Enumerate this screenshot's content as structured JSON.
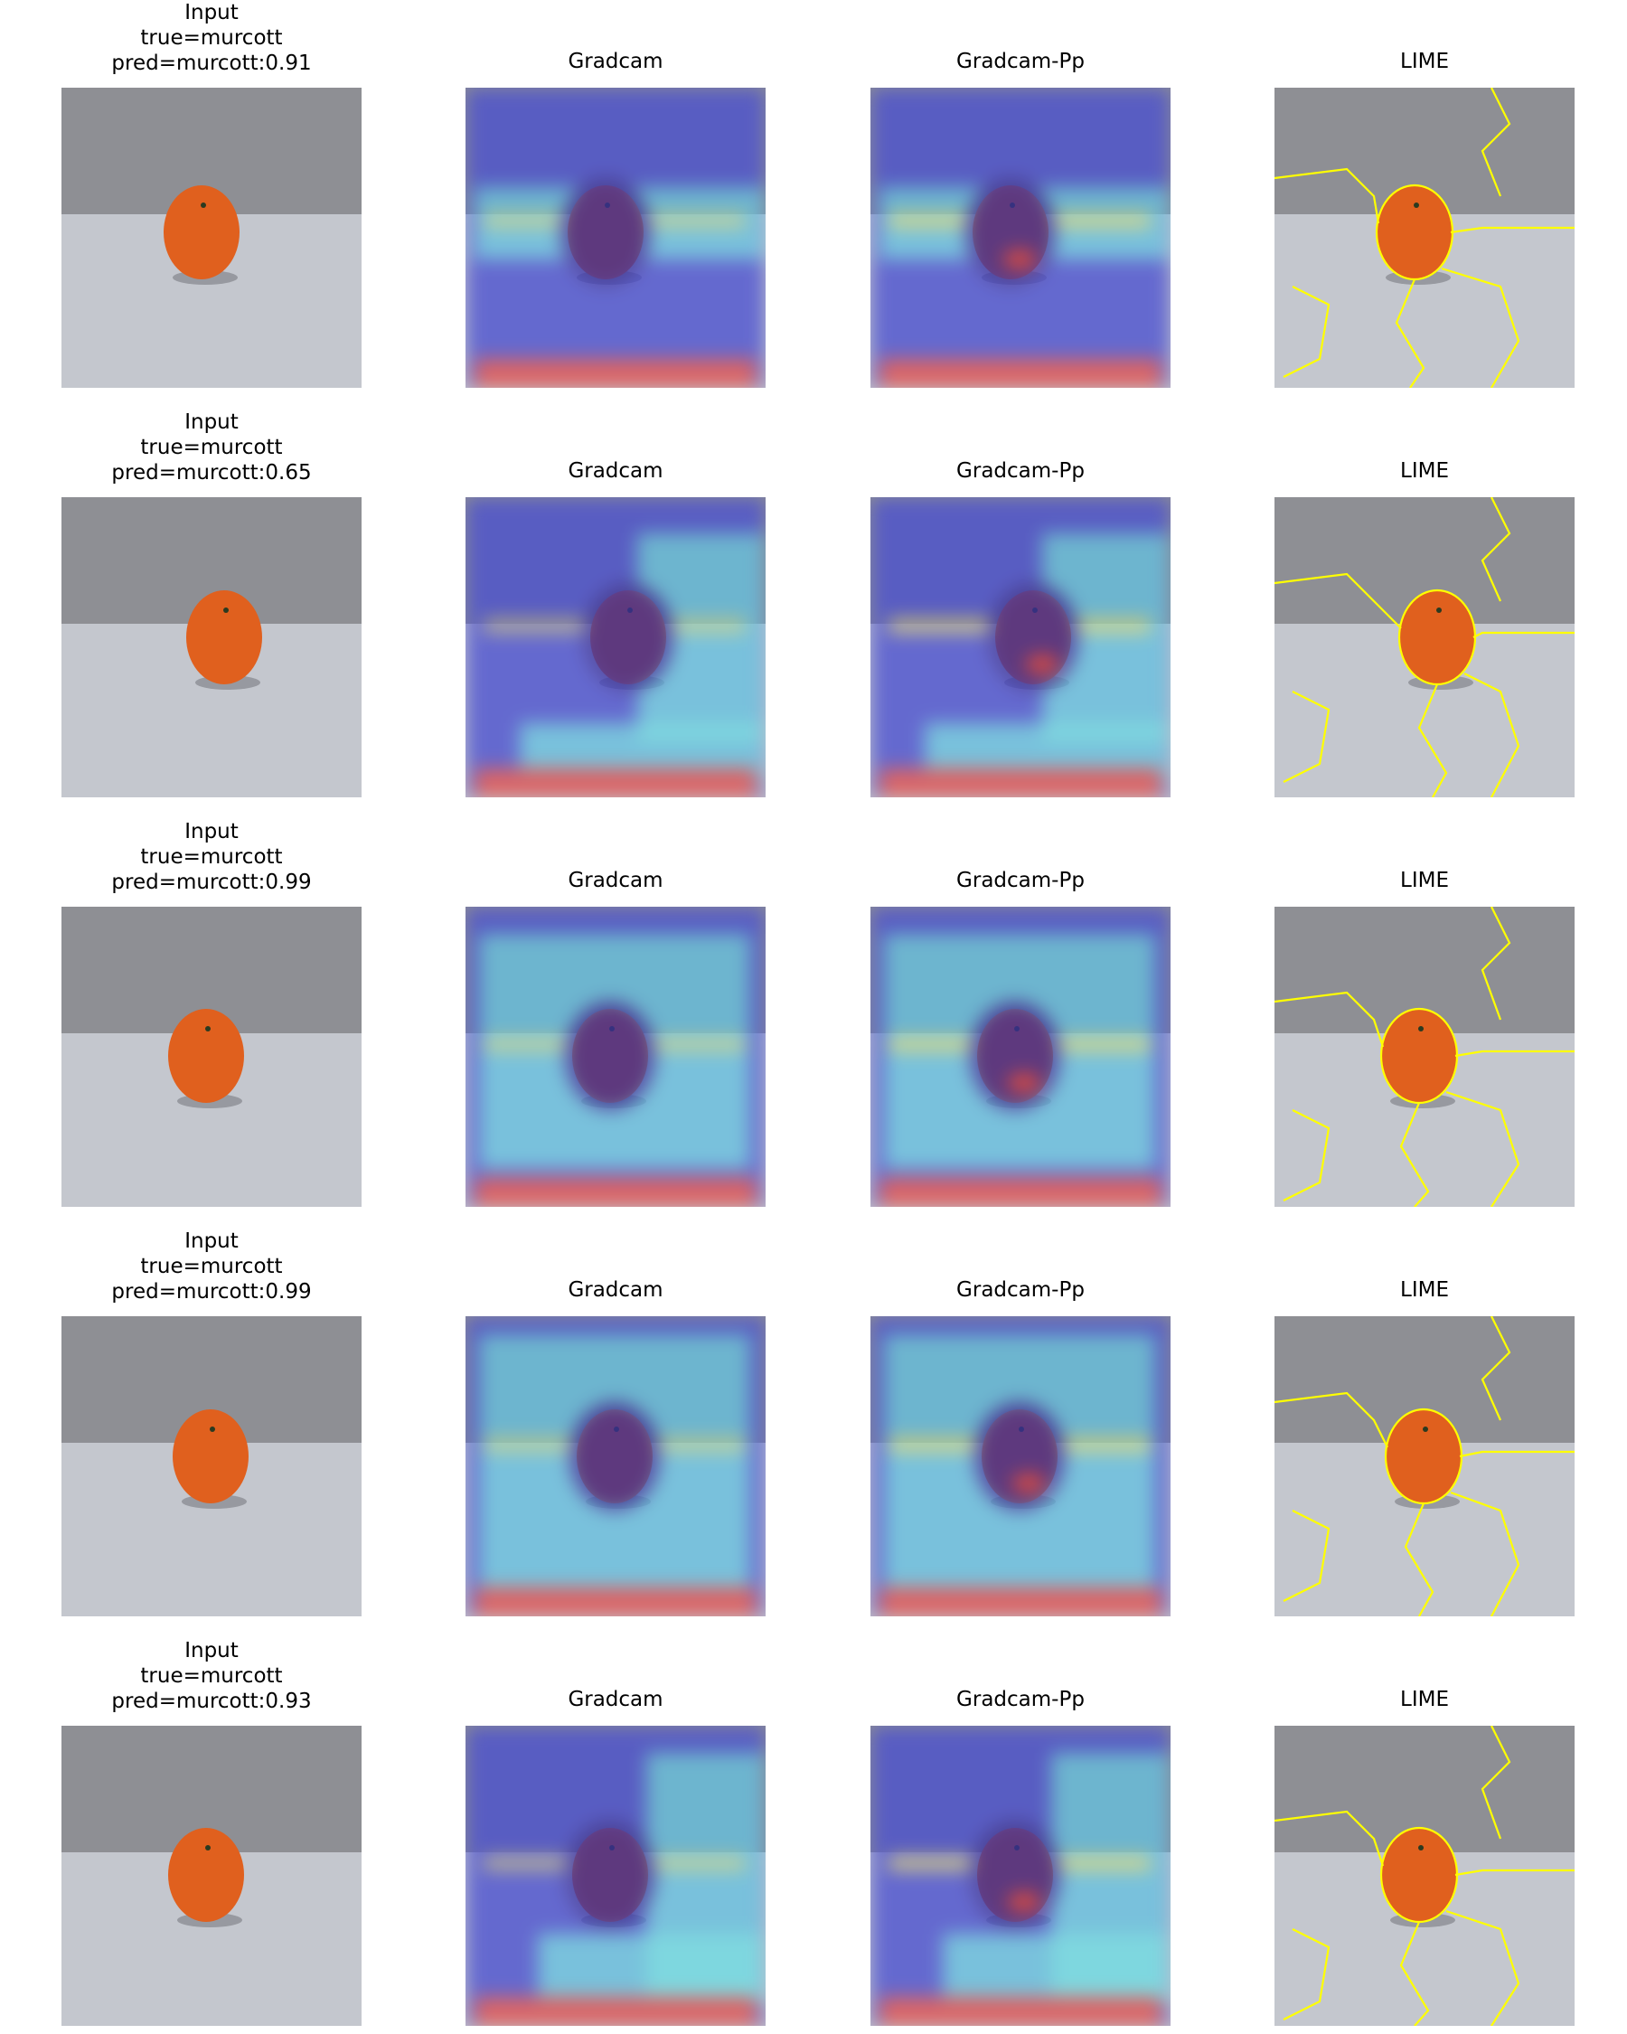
{
  "columns": [
    "Input",
    "Gradcam",
    "Gradcam-Pp",
    "LIME"
  ],
  "rows": [
    {
      "true_label": "true=murcott",
      "pred_label": "pred=murcott:0.91"
    },
    {
      "true_label": "true=murcott",
      "pred_label": "pred=murcott:0.65"
    },
    {
      "true_label": "true=murcott",
      "pred_label": "pred=murcott:0.99"
    },
    {
      "true_label": "true=murcott",
      "pred_label": "pred=murcott:0.99"
    },
    {
      "true_label": "true=murcott",
      "pred_label": "pred=murcott:0.93"
    }
  ],
  "colors": {
    "background_wall": "#8e8f94",
    "background_table": "#c4c7ce",
    "orange": "#e0601e",
    "heat_blue": "#4a4fd0",
    "heat_cyan": "#6ee6e6",
    "heat_yellow": "#f0e060",
    "heat_red": "#e04848",
    "lime_edge": "#ffff00"
  }
}
